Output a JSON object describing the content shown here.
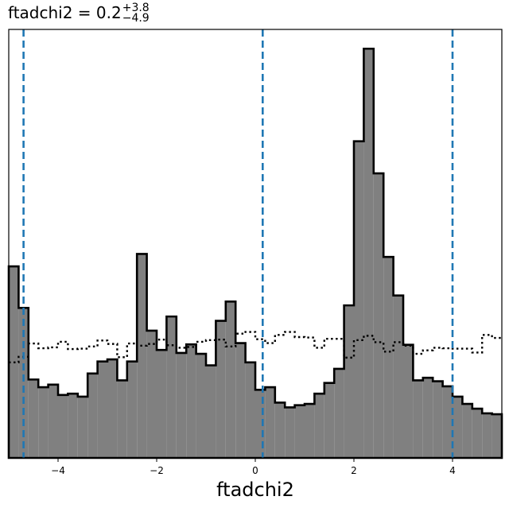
{
  "chart_data": {
    "type": "histogram",
    "title": {
      "prefix": "ftadchi2 = 0.2",
      "upper": "+3.8",
      "lower": "−4.9"
    },
    "xlabel": "ftadchi2",
    "ylabel": "",
    "xlim": [
      -5,
      5
    ],
    "ylim": [
      0,
      1
    ],
    "x_ticks": [
      {
        "value": -4,
        "label": "−4"
      },
      {
        "value": -2,
        "label": "−2"
      },
      {
        "value": 0,
        "label": "0"
      },
      {
        "value": 2,
        "label": "2"
      },
      {
        "value": 4,
        "label": "4"
      }
    ],
    "y_ticks_shown": false,
    "bins": {
      "start": -5,
      "width": 0.2,
      "count": 50
    },
    "series": [
      {
        "style": "filled",
        "fill_color": "#808080",
        "edge_color": "#000000",
        "values": [
          0.447,
          0.35,
          0.183,
          0.165,
          0.171,
          0.147,
          0.15,
          0.143,
          0.197,
          0.225,
          0.23,
          0.181,
          0.225,
          0.476,
          0.297,
          0.252,
          0.33,
          0.245,
          0.265,
          0.243,
          0.216,
          0.32,
          0.365,
          0.268,
          0.223,
          0.159,
          0.165,
          0.129,
          0.118,
          0.123,
          0.126,
          0.15,
          0.175,
          0.208,
          0.356,
          0.739,
          0.955,
          0.664,
          0.469,
          0.379,
          0.264,
          0.181,
          0.187,
          0.179,
          0.167,
          0.143,
          0.126,
          0.115,
          0.104,
          0.102
        ]
      },
      {
        "style": "dotted-outline",
        "edge_color": "#000000",
        "values": [
          0.223,
          0.236,
          0.267,
          0.256,
          0.258,
          0.271,
          0.254,
          0.255,
          0.26,
          0.274,
          0.266,
          0.235,
          0.267,
          0.262,
          0.266,
          0.276,
          0.263,
          0.257,
          0.259,
          0.271,
          0.275,
          0.276,
          0.26,
          0.29,
          0.294,
          0.277,
          0.268,
          0.287,
          0.294,
          0.282,
          0.281,
          0.257,
          0.278,
          0.278,
          0.234,
          0.275,
          0.285,
          0.27,
          0.248,
          0.27,
          0.262,
          0.243,
          0.251,
          0.257,
          0.256,
          0.255,
          0.255,
          0.246,
          0.287,
          0.28
        ]
      }
    ],
    "vertical_lines": [
      {
        "x": -4.7,
        "color": "#1f77b4",
        "style": "dashed"
      },
      {
        "x": 0.15,
        "color": "#1f77b4",
        "style": "dashed"
      },
      {
        "x": 4.0,
        "color": "#1f77b4",
        "style": "dashed"
      }
    ],
    "grid": false,
    "legend": "none"
  }
}
